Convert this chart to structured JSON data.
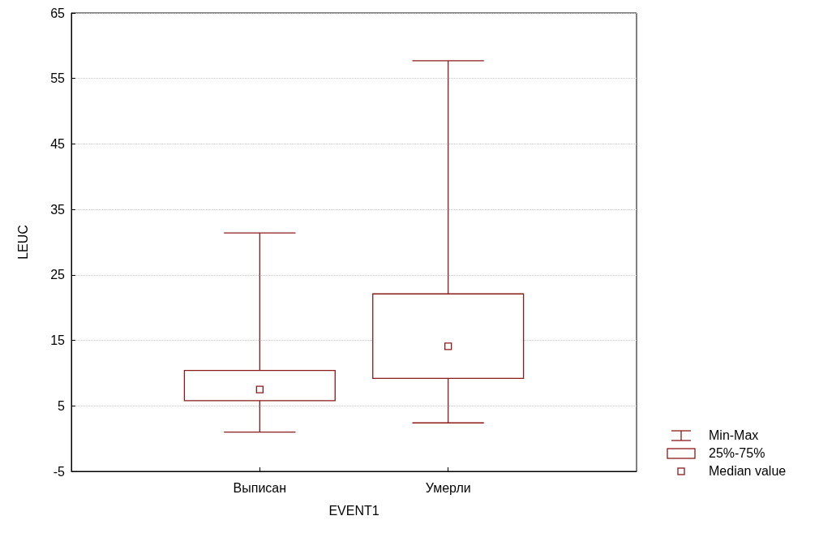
{
  "chart_data": {
    "type": "box",
    "xlabel": "EVENT1",
    "ylabel": "LEUC",
    "categories": [
      "Выписан",
      "Умерли"
    ],
    "series": [
      {
        "color": "#8b1a1a",
        "boxes": [
          {
            "low": 1.0,
            "q1": 5.8,
            "median": 7.5,
            "q3": 10.4,
            "high": 31.4
          },
          {
            "low": 2.4,
            "q1": 9.2,
            "median": 14.1,
            "q3": 22.1,
            "high": 57.7
          }
        ]
      }
    ],
    "ylim": [
      -5,
      65
    ],
    "yticks": [
      -5,
      5,
      15,
      25,
      35,
      45,
      55,
      65
    ],
    "grid": true,
    "annotations": [
      "Min-Max",
      "25%-75%",
      "Median value"
    ]
  }
}
